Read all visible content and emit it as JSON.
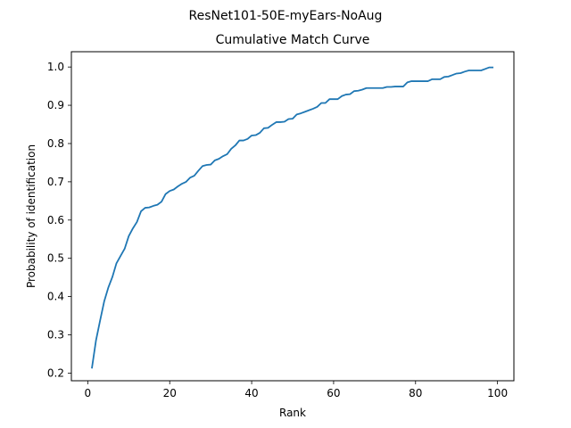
{
  "suptitle": "ResNet101-50E-myEars-NoAug",
  "chart_data": {
    "type": "line",
    "title": "Cumulative Match Curve",
    "xlabel": "Rank",
    "ylabel": "Probability of identification",
    "xlim": [
      -4,
      104
    ],
    "ylim": [
      0.18,
      1.04
    ],
    "xticks": [
      0,
      20,
      40,
      60,
      80,
      100
    ],
    "yticks": [
      0.2,
      0.3,
      0.4,
      0.5,
      0.6,
      0.7,
      0.8,
      0.9,
      1.0
    ],
    "xtick_labels": [
      "0",
      "20",
      "40",
      "60",
      "80",
      "100"
    ],
    "ytick_labels": [
      "0.2",
      "0.3",
      "0.4",
      "0.5",
      "0.6",
      "0.7",
      "0.8",
      "0.9",
      "1.0"
    ],
    "grid": false,
    "series": [
      {
        "color": "#1f77b4",
        "x": [
          1,
          2,
          3,
          4,
          5,
          6,
          7,
          8,
          9,
          10,
          11,
          12,
          13,
          14,
          15,
          16,
          17,
          18,
          19,
          20,
          21,
          22,
          23,
          24,
          25,
          26,
          27,
          28,
          29,
          30,
          31,
          32,
          33,
          34,
          35,
          36,
          37,
          38,
          39,
          40,
          41,
          42,
          43,
          44,
          45,
          46,
          47,
          48,
          49,
          50,
          51,
          52,
          53,
          54,
          55,
          56,
          57,
          58,
          59,
          60,
          61,
          62,
          63,
          64,
          65,
          66,
          67,
          68,
          69,
          70,
          71,
          72,
          73,
          74,
          75,
          76,
          77,
          78,
          79,
          80,
          81,
          82,
          83,
          84,
          85,
          86,
          87,
          88,
          89,
          90,
          91,
          92,
          93,
          94,
          95,
          96,
          97,
          98,
          99
        ],
        "y": [
          0.212,
          0.285,
          0.337,
          0.387,
          0.423,
          0.451,
          0.487,
          0.506,
          0.525,
          0.558,
          0.578,
          0.595,
          0.623,
          0.632,
          0.633,
          0.637,
          0.64,
          0.648,
          0.668,
          0.676,
          0.68,
          0.688,
          0.695,
          0.7,
          0.711,
          0.716,
          0.729,
          0.741,
          0.744,
          0.745,
          0.756,
          0.76,
          0.767,
          0.772,
          0.786,
          0.795,
          0.808,
          0.808,
          0.812,
          0.821,
          0.822,
          0.828,
          0.84,
          0.841,
          0.849,
          0.856,
          0.856,
          0.857,
          0.864,
          0.865,
          0.876,
          0.879,
          0.883,
          0.887,
          0.891,
          0.896,
          0.906,
          0.906,
          0.916,
          0.916,
          0.916,
          0.924,
          0.928,
          0.929,
          0.937,
          0.938,
          0.941,
          0.945,
          0.945,
          0.945,
          0.945,
          0.945,
          0.948,
          0.948,
          0.949,
          0.949,
          0.949,
          0.96,
          0.963,
          0.963,
          0.963,
          0.963,
          0.963,
          0.968,
          0.968,
          0.968,
          0.974,
          0.975,
          0.979,
          0.983,
          0.984,
          0.988,
          0.991,
          0.991,
          0.991,
          0.991,
          0.995,
          0.999,
          0.999
        ]
      }
    ]
  }
}
